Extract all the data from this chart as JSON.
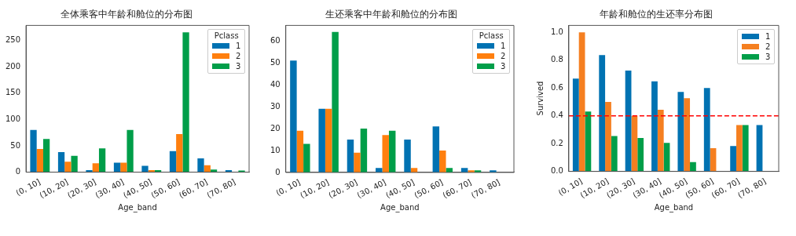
{
  "chart_data": [
    {
      "type": "bar",
      "title": "全体乘客中年龄和舱位的分布图",
      "xlabel": "Age_band",
      "categories": [
        "(0, 10]",
        "(10, 20]",
        "(20, 30]",
        "(30, 40]",
        "(40, 50]",
        "(50, 60]",
        "(60, 70]",
        "(70, 80]"
      ],
      "ylim": [
        0,
        278
      ],
      "yticks": [
        0,
        50,
        100,
        150,
        200,
        250
      ],
      "grid": false,
      "legend": "top right",
      "legend_title": "Pclass",
      "series": [
        {
          "name": "1",
          "color": "#0072b2",
          "values": [
            80,
            38,
            4,
            18,
            12,
            40,
            26,
            4
          ]
        },
        {
          "name": "2",
          "color": "#ff7f0e",
          "values": [
            44,
            20,
            17,
            18,
            4,
            72,
            13,
            null
          ]
        },
        {
          "name": "3",
          "color": "#009e49",
          "values": [
            63,
            31,
            45,
            80,
            4,
            265,
            5,
            3
          ]
        }
      ]
    },
    {
      "type": "bar",
      "title": "生还乘客中年龄和舱位的分布图",
      "xlabel": "Age_band",
      "categories": [
        "(0, 10]",
        "(10, 20]",
        "(20, 30]",
        "(30, 40]",
        "(40, 50]",
        "(50, 60]",
        "(60, 70]",
        "(70, 80]"
      ],
      "ylim": [
        0,
        67
      ],
      "yticks": [
        0,
        10,
        20,
        30,
        40,
        50,
        60
      ],
      "grid": false,
      "legend": "top right",
      "legend_title": "Pclass",
      "series": [
        {
          "name": "1",
          "color": "#0072b2",
          "values": [
            51,
            29,
            15,
            2,
            15,
            21,
            2,
            1
          ]
        },
        {
          "name": "2",
          "color": "#ff7f0e",
          "values": [
            19,
            29,
            9,
            17,
            2,
            10,
            1,
            null
          ]
        },
        {
          "name": "3",
          "color": "#009e49",
          "values": [
            13,
            64,
            20,
            19,
            null,
            2,
            1,
            null
          ]
        }
      ]
    },
    {
      "type": "bar",
      "title": "年龄和舱位的生还率分布图",
      "xlabel": "Age_band",
      "ylabel": "Survived",
      "categories": [
        "(0, 10]",
        "(10, 20]",
        "(20, 30]",
        "(30, 40]",
        "(40, 50]",
        "(50, 60]",
        "(60, 70]",
        "(70, 80]"
      ],
      "ylim": [
        0,
        1.05
      ],
      "yticks": [
        {
          "value": 0,
          "label": "0.0"
        },
        {
          "value": 0.2,
          "label": "0.2"
        },
        {
          "value": 0.4,
          "label": "0.4"
        },
        {
          "value": 0.6,
          "label": "0.6"
        },
        {
          "value": 0.8,
          "label": "0.8"
        },
        {
          "value": 1,
          "label": "1.0"
        }
      ],
      "grid": false,
      "legend": "top right",
      "ref_lines": [
        {
          "axis": "y",
          "value": 0.4,
          "color": "#ff0000",
          "line_style": "dashed"
        }
      ],
      "series": [
        {
          "name": "1",
          "color": "#0072b2",
          "values": [
            0.667,
            0.836,
            0.725,
            0.648,
            0.571,
            0.6,
            0.182,
            0.333
          ]
        },
        {
          "name": "2",
          "color": "#f57f20",
          "values": [
            1.0,
            0.5,
            0.4,
            0.444,
            0.526,
            0.167,
            0.333,
            null
          ]
        },
        {
          "name": "3",
          "color": "#009e49",
          "values": [
            0.431,
            0.255,
            0.24,
            0.205,
            0.067,
            null,
            0.333,
            null
          ]
        }
      ]
    }
  ]
}
